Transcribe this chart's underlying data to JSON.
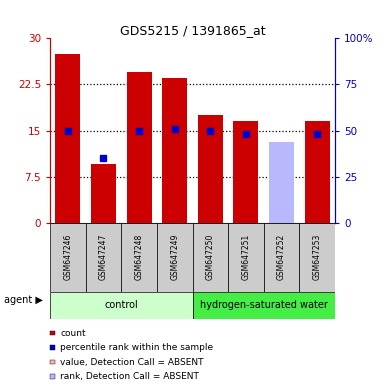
{
  "title": "GDS5215 / 1391865_at",
  "samples": [
    "GSM647246",
    "GSM647247",
    "GSM647248",
    "GSM647249",
    "GSM647250",
    "GSM647251",
    "GSM647252",
    "GSM647253"
  ],
  "red_values": [
    27.5,
    9.5,
    24.5,
    23.5,
    17.5,
    16.5,
    0.0,
    16.5
  ],
  "blue_values_right": [
    50.0,
    35.0,
    50.0,
    51.0,
    50.0,
    48.0,
    0.0,
    48.0
  ],
  "pink_value_absent": [
    0.0,
    0.0,
    0.0,
    0.0,
    0.0,
    0.0,
    12.0,
    0.0
  ],
  "lavender_rank_absent_right": [
    0.0,
    0.0,
    0.0,
    0.0,
    0.0,
    0.0,
    44.0,
    0.0
  ],
  "ylim_left": [
    0,
    30
  ],
  "ylim_right": [
    0,
    100
  ],
  "yticks_left": [
    0,
    7.5,
    15,
    22.5,
    30
  ],
  "ytick_labels_left": [
    "0",
    "7.5",
    "15",
    "22.5",
    "30"
  ],
  "yticks_right": [
    0,
    25,
    50,
    75,
    100
  ],
  "ytick_labels_right": [
    "0",
    "25",
    "50",
    "75",
    "100%"
  ],
  "red_color": "#cc0000",
  "blue_color": "#0000cc",
  "pink_color": "#ffb3b3",
  "lavender_color": "#b8b8ff",
  "control_bg_light": "#ccffcc",
  "control_bg_dark": "#44ee44",
  "label_bg": "#cccccc",
  "grid_yticks": [
    7.5,
    15,
    22.5
  ]
}
